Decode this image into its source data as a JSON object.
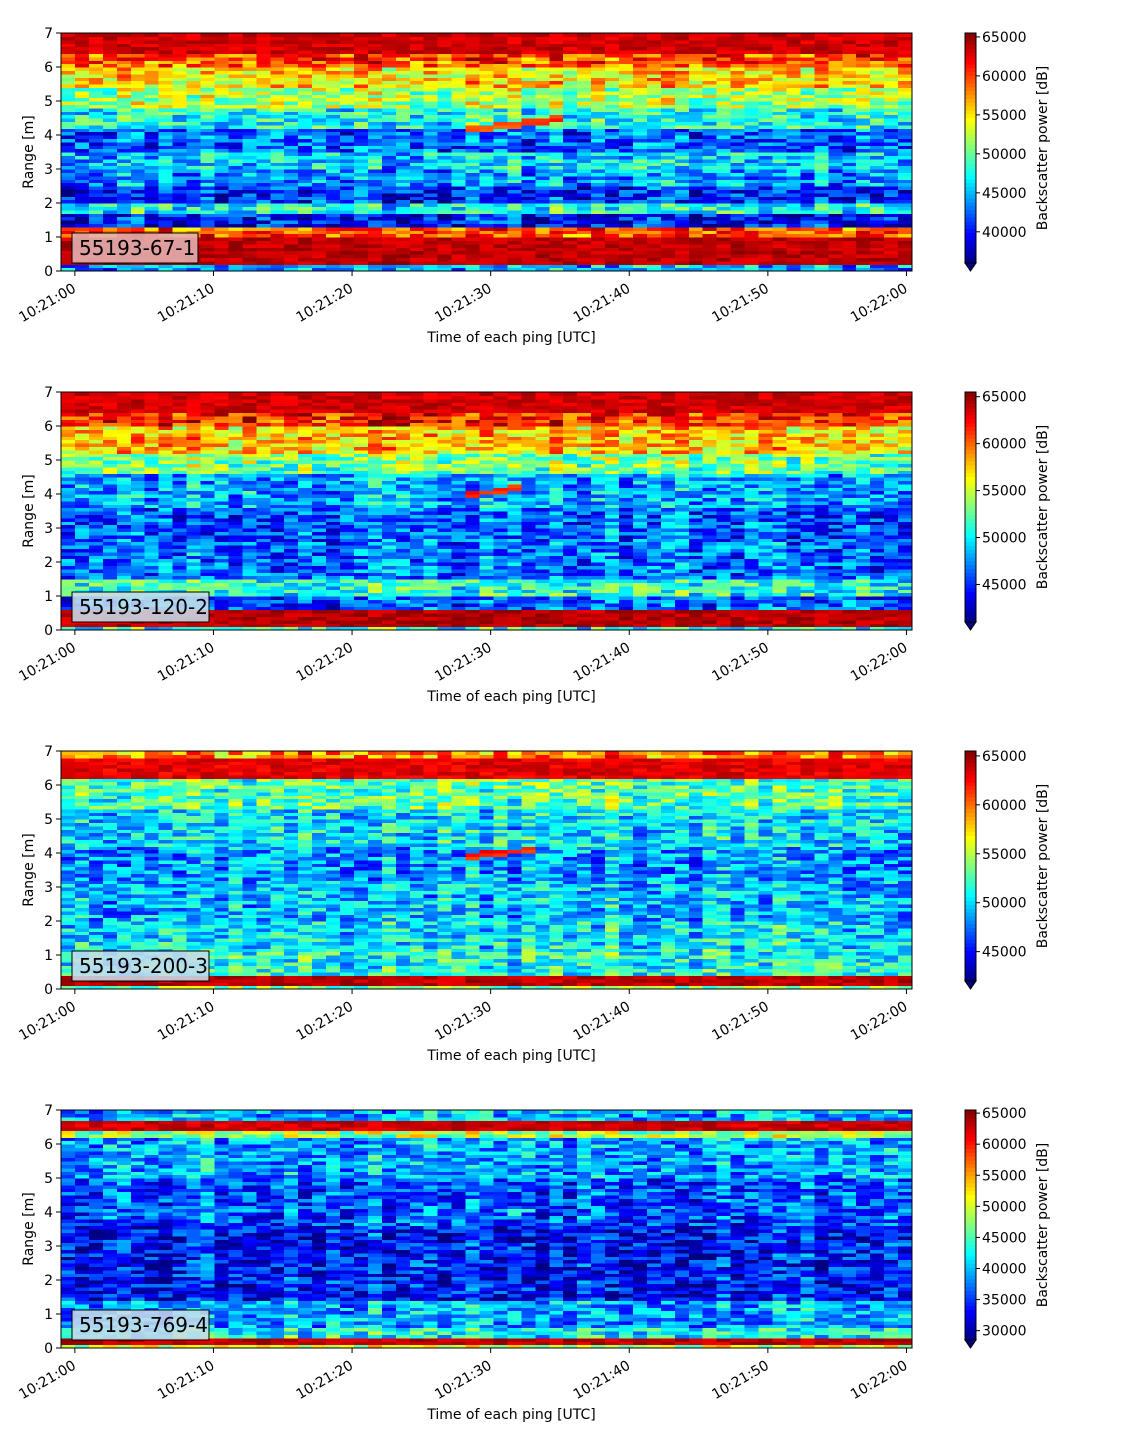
{
  "chart_data": [
    {
      "type": "heatmap",
      "panel_label": "55193-67-1",
      "xlabel": "Time of each ping [UTC]",
      "ylabel": "Range [m]",
      "colorbar_label": "Backscatter power [dB]",
      "colormap": "jet",
      "x_ticks": [
        "10:21:00",
        "10:21:10",
        "10:21:20",
        "10:21:30",
        "10:21:40",
        "10:21:50",
        "10:22:00"
      ],
      "x_range_seconds": [
        -1,
        60.4
      ],
      "y_ticks": [
        0,
        1,
        2,
        3,
        4,
        5,
        6,
        7
      ],
      "ylim": [
        0,
        7
      ],
      "colorbar_ticks": [
        40000,
        45000,
        50000,
        55000,
        60000,
        65000
      ],
      "clim": [
        36000,
        65500
      ],
      "extend": "min",
      "bands": [
        {
          "y0": 0.0,
          "y1": 0.25,
          "level": 0.3
        },
        {
          "y0": 0.25,
          "y1": 1.05,
          "level": 0.99
        },
        {
          "y0": 1.05,
          "y1": 1.3,
          "level": 0.8
        },
        {
          "y0": 1.3,
          "y1": 1.7,
          "level": 0.14
        },
        {
          "y0": 1.7,
          "y1": 2.05,
          "level": 0.4
        },
        {
          "y0": 2.05,
          "y1": 2.5,
          "level": 0.16
        },
        {
          "y0": 2.5,
          "y1": 3.0,
          "level": 0.28
        },
        {
          "y0": 3.0,
          "y1": 3.5,
          "level": 0.34
        },
        {
          "y0": 3.5,
          "y1": 4.2,
          "level": 0.22
        },
        {
          "y0": 4.2,
          "y1": 4.8,
          "level": 0.4
        },
        {
          "y0": 4.8,
          "y1": 5.4,
          "level": 0.55
        },
        {
          "y0": 5.4,
          "y1": 6.0,
          "level": 0.66
        },
        {
          "y0": 6.0,
          "y1": 6.4,
          "level": 0.8
        },
        {
          "y0": 6.4,
          "y1": 7.0,
          "level": 0.97
        }
      ],
      "trace": {
        "x0": 28,
        "x1": 35,
        "y0": 4.15,
        "y1": 4.5,
        "level": 0.82
      },
      "seed": 11
    },
    {
      "type": "heatmap",
      "panel_label": "55193-120-2",
      "xlabel": "Time of each ping [UTC]",
      "ylabel": "Range [m]",
      "colorbar_label": "Backscatter power [dB]",
      "colormap": "jet",
      "x_ticks": [
        "10:21:00",
        "10:21:10",
        "10:21:20",
        "10:21:30",
        "10:21:40",
        "10:21:50",
        "10:22:00"
      ],
      "x_range_seconds": [
        -1,
        60.4
      ],
      "y_ticks": [
        0,
        1,
        2,
        3,
        4,
        5,
        6,
        7
      ],
      "ylim": [
        0,
        7
      ],
      "colorbar_ticks": [
        45000,
        50000,
        55000,
        60000,
        65000
      ],
      "clim": [
        41000,
        65500
      ],
      "extend": "min",
      "bands": [
        {
          "y0": 0.0,
          "y1": 0.1,
          "level": 0.4
        },
        {
          "y0": 0.1,
          "y1": 0.6,
          "level": 0.99
        },
        {
          "y0": 0.6,
          "y1": 1.0,
          "level": 0.22
        },
        {
          "y0": 1.0,
          "y1": 1.5,
          "level": 0.42
        },
        {
          "y0": 1.5,
          "y1": 2.6,
          "level": 0.24
        },
        {
          "y0": 2.6,
          "y1": 3.6,
          "level": 0.22
        },
        {
          "y0": 3.6,
          "y1": 4.6,
          "level": 0.3
        },
        {
          "y0": 4.6,
          "y1": 5.2,
          "level": 0.5
        },
        {
          "y0": 5.2,
          "y1": 6.0,
          "level": 0.68
        },
        {
          "y0": 6.0,
          "y1": 6.4,
          "level": 0.85
        },
        {
          "y0": 6.4,
          "y1": 7.0,
          "level": 0.97
        }
      ],
      "trace": {
        "x0": 28,
        "x1": 32,
        "y0": 3.95,
        "y1": 4.2,
        "level": 0.85
      },
      "seed": 23
    },
    {
      "type": "heatmap",
      "panel_label": "55193-200-3",
      "xlabel": "Time of each ping [UTC]",
      "ylabel": "Range [m]",
      "colorbar_label": "Backscatter power [dB]",
      "colormap": "jet",
      "x_ticks": [
        "10:21:00",
        "10:21:10",
        "10:21:20",
        "10:21:30",
        "10:21:40",
        "10:21:50",
        "10:22:00"
      ],
      "x_range_seconds": [
        -1,
        60.4
      ],
      "y_ticks": [
        0,
        1,
        2,
        3,
        4,
        5,
        6,
        7
      ],
      "ylim": [
        0,
        7
      ],
      "colorbar_ticks": [
        45000,
        50000,
        55000,
        60000,
        65000
      ],
      "clim": [
        42000,
        65500
      ],
      "extend": "min",
      "bands": [
        {
          "y0": 0.0,
          "y1": 0.1,
          "level": 0.5
        },
        {
          "y0": 0.1,
          "y1": 0.4,
          "level": 0.99
        },
        {
          "y0": 0.4,
          "y1": 1.2,
          "level": 0.4
        },
        {
          "y0": 1.2,
          "y1": 2.0,
          "level": 0.36
        },
        {
          "y0": 2.0,
          "y1": 3.2,
          "level": 0.32
        },
        {
          "y0": 3.2,
          "y1": 4.2,
          "level": 0.28
        },
        {
          "y0": 4.2,
          "y1": 5.3,
          "level": 0.36
        },
        {
          "y0": 5.3,
          "y1": 6.2,
          "level": 0.46
        },
        {
          "y0": 6.2,
          "y1": 6.8,
          "level": 0.95
        },
        {
          "y0": 6.8,
          "y1": 7.0,
          "level": 0.75
        }
      ],
      "trace": {
        "x0": 28,
        "x1": 33,
        "y0": 3.9,
        "y1": 4.1,
        "level": 0.85
      },
      "seed": 37
    },
    {
      "type": "heatmap",
      "panel_label": "55193-769-4",
      "xlabel": "Time of each ping [UTC]",
      "ylabel": "Range [m]",
      "colorbar_label": "Backscatter power [dB]",
      "colormap": "jet",
      "x_ticks": [
        "10:21:00",
        "10:21:10",
        "10:21:20",
        "10:21:30",
        "10:21:40",
        "10:21:50",
        "10:22:00"
      ],
      "x_range_seconds": [
        -1,
        60.4
      ],
      "y_ticks": [
        0,
        1,
        2,
        3,
        4,
        5,
        6,
        7
      ],
      "ylim": [
        0,
        7
      ],
      "colorbar_ticks": [
        30000,
        35000,
        40000,
        45000,
        50000,
        55000,
        60000,
        65000
      ],
      "clim": [
        28500,
        65500
      ],
      "extend": "min",
      "bands": [
        {
          "y0": 0.0,
          "y1": 0.1,
          "level": 0.6
        },
        {
          "y0": 0.1,
          "y1": 0.35,
          "level": 0.99
        },
        {
          "y0": 0.35,
          "y1": 0.6,
          "level": 0.4
        },
        {
          "y0": 0.6,
          "y1": 1.4,
          "level": 0.3
        },
        {
          "y0": 1.4,
          "y1": 3.6,
          "level": 0.15
        },
        {
          "y0": 3.6,
          "y1": 5.0,
          "level": 0.22
        },
        {
          "y0": 5.0,
          "y1": 6.2,
          "level": 0.3
        },
        {
          "y0": 6.2,
          "y1": 6.4,
          "level": 0.55
        },
        {
          "y0": 6.4,
          "y1": 6.65,
          "level": 0.97
        },
        {
          "y0": 6.65,
          "y1": 7.0,
          "level": 0.32
        }
      ],
      "trace": {
        "x0": 31,
        "x1": 33,
        "y0": 4.0,
        "y1": 4.05,
        "level": 0.45
      },
      "seed": 53
    }
  ]
}
